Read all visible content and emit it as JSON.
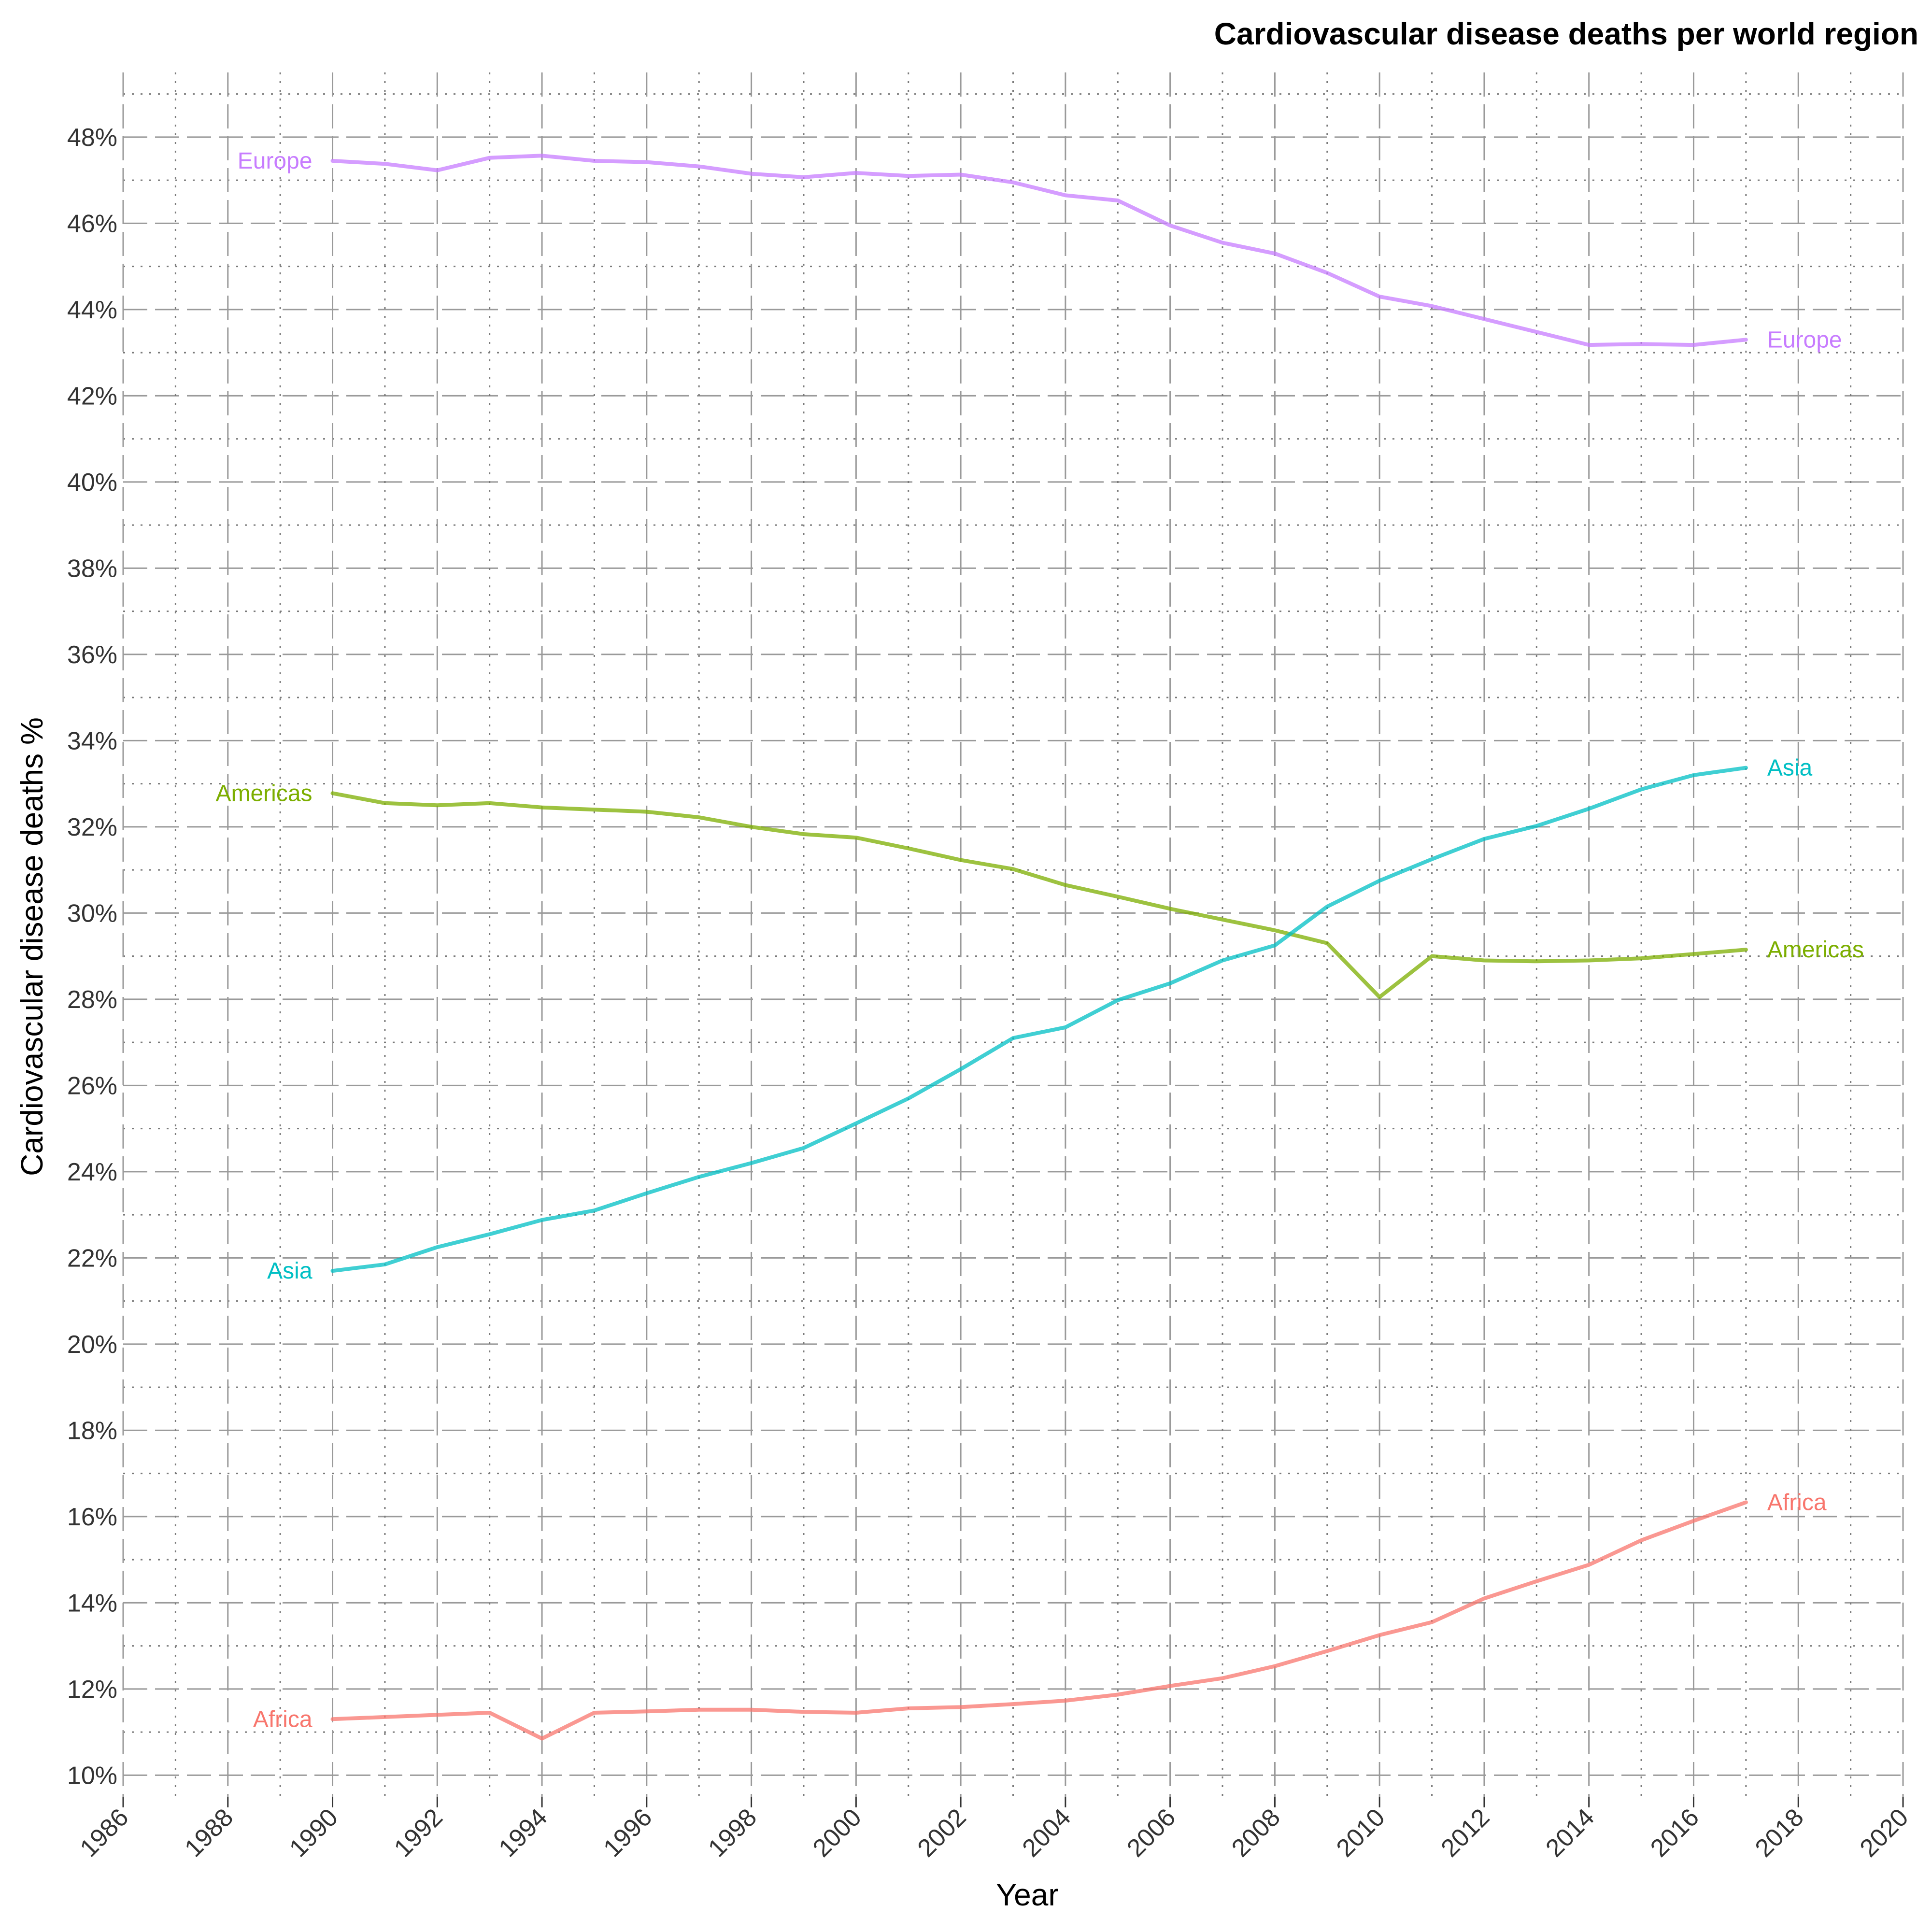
{
  "chart_data": {
    "type": "line",
    "title": "Cardiovascular disease deaths per world region",
    "xlabel": "Year",
    "ylabel": "Cardiovascular disease deaths %",
    "xlim": [
      1986,
      2020
    ],
    "ylim": [
      9.5,
      49.5
    ],
    "x_ticks": [
      "1986",
      "1988",
      "1990",
      "1992",
      "1994",
      "1996",
      "1998",
      "2000",
      "2002",
      "2004",
      "2006",
      "2008",
      "2010",
      "2012",
      "2014",
      "2016",
      "2018",
      "2020"
    ],
    "y_ticks": [
      "10%",
      "12%",
      "14%",
      "16%",
      "18%",
      "20%",
      "22%",
      "24%",
      "26%",
      "28%",
      "30%",
      "32%",
      "34%",
      "36%",
      "38%",
      "40%",
      "42%",
      "44%",
      "46%",
      "48%"
    ],
    "grid": true,
    "legend": "none (direct labels at both ends of each line)",
    "x": [
      1990,
      1991,
      1992,
      1993,
      1994,
      1995,
      1996,
      1997,
      1998,
      1999,
      2000,
      2001,
      2002,
      2003,
      2004,
      2005,
      2006,
      2007,
      2008,
      2009,
      2010,
      2011,
      2012,
      2013,
      2014,
      2015,
      2016,
      2017
    ],
    "series": [
      {
        "name": "Europe",
        "color": "#C77CFF",
        "values": [
          47.45,
          47.38,
          47.23,
          47.52,
          47.57,
          47.45,
          47.42,
          47.32,
          47.15,
          47.07,
          47.17,
          47.1,
          47.13,
          46.95,
          46.65,
          46.53,
          45.95,
          45.55,
          45.3,
          44.85,
          44.3,
          44.08,
          43.78,
          43.48,
          43.18,
          43.2,
          43.18,
          43.3
        ]
      },
      {
        "name": "Americas",
        "color": "#7CAE00",
        "values": [
          32.78,
          32.55,
          32.5,
          32.55,
          32.45,
          32.4,
          32.35,
          32.22,
          32.0,
          31.83,
          31.75,
          31.5,
          31.23,
          31.02,
          30.65,
          30.38,
          30.1,
          29.85,
          29.6,
          29.3,
          28.05,
          29.0,
          28.9,
          28.88,
          28.9,
          28.95,
          29.05,
          29.15
        ]
      },
      {
        "name": "Asia",
        "color": "#00BFC4",
        "values": [
          21.7,
          21.85,
          22.25,
          22.55,
          22.88,
          23.1,
          23.5,
          23.88,
          24.2,
          24.55,
          25.12,
          25.7,
          26.38,
          27.1,
          27.35,
          27.98,
          28.37,
          28.9,
          29.25,
          30.15,
          30.75,
          31.25,
          31.72,
          32.02,
          32.42,
          32.87,
          33.2,
          33.37
        ]
      },
      {
        "name": "Africa",
        "color": "#F8766D",
        "values": [
          11.3,
          11.35,
          11.4,
          11.45,
          10.85,
          11.45,
          11.48,
          11.52,
          11.52,
          11.47,
          11.45,
          11.55,
          11.58,
          11.65,
          11.73,
          11.87,
          12.07,
          12.25,
          12.53,
          12.88,
          13.25,
          13.55,
          14.1,
          14.5,
          14.88,
          15.45,
          15.9,
          16.33
        ]
      }
    ]
  }
}
